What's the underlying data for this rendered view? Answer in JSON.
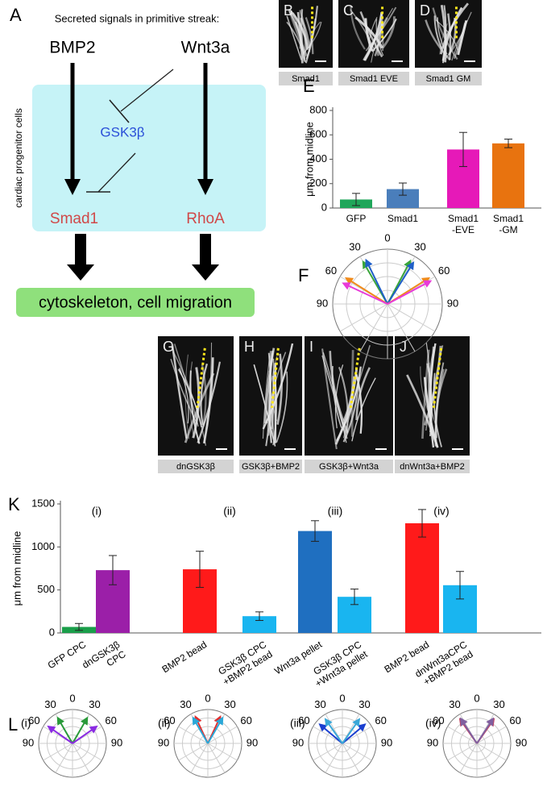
{
  "diagram": {
    "label": "A",
    "heading": "Secreted signals in primitive streak:",
    "signals": [
      "BMP2",
      "Wnt3a"
    ],
    "context": "cardiac progenitor cells",
    "inhibitor": "GSK3β",
    "effectors": [
      "Smad1",
      "RhoA"
    ],
    "outcome": "cytoskeleton, cell migration"
  },
  "images": [
    {
      "label": "B",
      "caption": "Smad1"
    },
    {
      "label": "C",
      "caption": "Smad1 EVE"
    },
    {
      "label": "D",
      "caption": "Smad1 GM"
    },
    {
      "label": "G",
      "caption": "dnGSK3β"
    },
    {
      "label": "H",
      "caption": "GSK3β+BMP2"
    },
    {
      "label": "I",
      "caption": "GSK3β+Wnt3a"
    },
    {
      "label": "J",
      "caption": "dnWnt3a+BMP2"
    }
  ],
  "chart_data": [
    {
      "type": "bar",
      "label": "E",
      "ylabel": "μm from midline",
      "categories": [
        "GFP",
        "Smad1",
        "Smad1\n-EVE",
        "Smad1\n-GM"
      ],
      "values": [
        70,
        155,
        480,
        530
      ],
      "errors": [
        50,
        50,
        140,
        35
      ],
      "colors": [
        "#1fa65a",
        "#4a7ebb",
        "#e619b8",
        "#e8730f"
      ],
      "ylim": [
        0,
        800
      ],
      "yticks": [
        0,
        200,
        400,
        600,
        800
      ]
    },
    {
      "type": "polar",
      "label": "F",
      "angle_ticks": [
        {
          "value": -90,
          "label": "90"
        },
        {
          "value": -60,
          "label": "60"
        },
        {
          "value": -30,
          "label": "30"
        },
        0,
        30,
        60,
        90
      ],
      "series": [
        {
          "color": "#3aa53a",
          "values": [
            -30,
            28
          ]
        },
        {
          "color": "#1f5fc8",
          "values": [
            -26,
            32
          ]
        },
        {
          "color": "#f08a1a",
          "values": [
            -58,
            58
          ]
        },
        {
          "color": "#e83ad8",
          "values": [
            -65,
            62
          ]
        }
      ]
    },
    {
      "type": "bar",
      "label": "K",
      "ylabel": "μm from midline",
      "categories": [
        "GFP CPC",
        "dnGSK3β\nCPC",
        "BMP2 bead",
        "GSK3β CPC\n+BMP2 bead",
        "Wnt3a pellet",
        "GSK3β CPC\n+Wnt3a pellet",
        "BMP2 bead",
        "dnWnt3aCPC\n+BMP2 bead"
      ],
      "values": [
        70,
        730,
        740,
        195,
        1185,
        420,
        1275,
        555
      ],
      "errors": [
        40,
        170,
        210,
        50,
        120,
        90,
        160,
        160
      ],
      "colors": [
        "#1a9e4a",
        "#9b1fa8",
        "#ff1a1a",
        "#19b5f0",
        "#1f6fc0",
        "#19b5f0",
        "#ff1a1a",
        "#19b5f0"
      ],
      "annotations": [
        "(i)",
        "(ii)",
        "(iii)",
        "(iv)"
      ],
      "ylim": [
        0,
        1500
      ],
      "yticks": [
        0,
        500,
        1000,
        1500
      ]
    },
    {
      "type": "polar",
      "label": "L",
      "tag": "(i)",
      "angle_ticks": [
        {
          "value": -90,
          "label": "90"
        },
        {
          "value": -60,
          "label": "60"
        },
        {
          "value": -30,
          "label": "30"
        },
        0,
        30,
        60,
        90
      ],
      "series": [
        {
          "color": "#2a9a3a",
          "values": [
            -30,
            30
          ]
        },
        {
          "color": "#8a2be2",
          "values": [
            -55,
            55
          ]
        }
      ]
    },
    {
      "type": "polar",
      "tag": "(ii)",
      "angle_ticks": [
        {
          "value": -90,
          "label": "90"
        },
        {
          "value": -60,
          "label": "60"
        },
        {
          "value": -30,
          "label": "30"
        },
        0,
        30,
        60,
        90
      ],
      "series": [
        {
          "color": "#e03030",
          "values": [
            -25,
            25
          ]
        },
        {
          "color": "#2aa8d8",
          "values": [
            -30,
            30
          ]
        }
      ]
    },
    {
      "type": "polar",
      "tag": "(iii)",
      "angle_ticks": [
        {
          "value": -90,
          "label": "90"
        },
        {
          "value": -60,
          "label": "60"
        },
        {
          "value": -30,
          "label": "30"
        },
        0,
        30,
        60,
        90
      ],
      "series": [
        {
          "color": "#1a3fd0",
          "values": [
            -50,
            50
          ]
        },
        {
          "color": "#3aa8d8",
          "values": [
            -35,
            35
          ]
        }
      ]
    },
    {
      "type": "polar",
      "tag": "(iv)",
      "angle_ticks": [
        {
          "value": -90,
          "label": "90"
        },
        {
          "value": -60,
          "label": "60"
        },
        {
          "value": -30,
          "label": "30"
        },
        0,
        30,
        60,
        90
      ],
      "series": [
        {
          "color": "#c04060",
          "values": [
            -35,
            35
          ]
        },
        {
          "color": "#8060a0",
          "values": [
            -33,
            33
          ]
        }
      ]
    }
  ]
}
